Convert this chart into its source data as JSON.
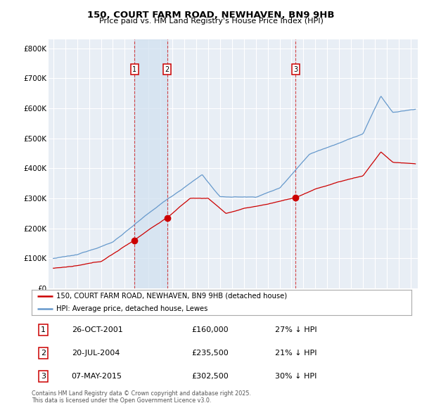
{
  "title": "150, COURT FARM ROAD, NEWHAVEN, BN9 9HB",
  "subtitle": "Price paid vs. HM Land Registry's House Price Index (HPI)",
  "legend_label_red": "150, COURT FARM ROAD, NEWHAVEN, BN9 9HB (detached house)",
  "legend_label_blue": "HPI: Average price, detached house, Lewes",
  "footnote": "Contains HM Land Registry data © Crown copyright and database right 2025.\nThis data is licensed under the Open Government Licence v3.0.",
  "transactions": [
    {
      "num": 1,
      "date": "26-OCT-2001",
      "price": 160000,
      "pct": "27%",
      "dir": "↓",
      "year": 2001.82
    },
    {
      "num": 2,
      "date": "20-JUL-2004",
      "price": 235500,
      "pct": "21%",
      "dir": "↓",
      "year": 2004.55
    },
    {
      "num": 3,
      "date": "07-MAY-2015",
      "price": 302500,
      "pct": "30%",
      "dir": "↓",
      "year": 2015.35
    }
  ],
  "ylim": [
    0,
    830000
  ],
  "yticks": [
    0,
    100000,
    200000,
    300000,
    400000,
    500000,
    600000,
    700000,
    800000
  ],
  "ytick_labels": [
    "£0",
    "£100K",
    "£200K",
    "£300K",
    "£400K",
    "£500K",
    "£600K",
    "£700K",
    "£800K"
  ],
  "background_color": "#ffffff",
  "plot_bg_color": "#e8eef5",
  "grid_color": "#ffffff",
  "red_color": "#cc0000",
  "blue_color": "#6699cc",
  "vline_color": "#cc0000",
  "vline_alpha": 0.7,
  "span_color": "#d0e0f0",
  "span_alpha": 0.7
}
